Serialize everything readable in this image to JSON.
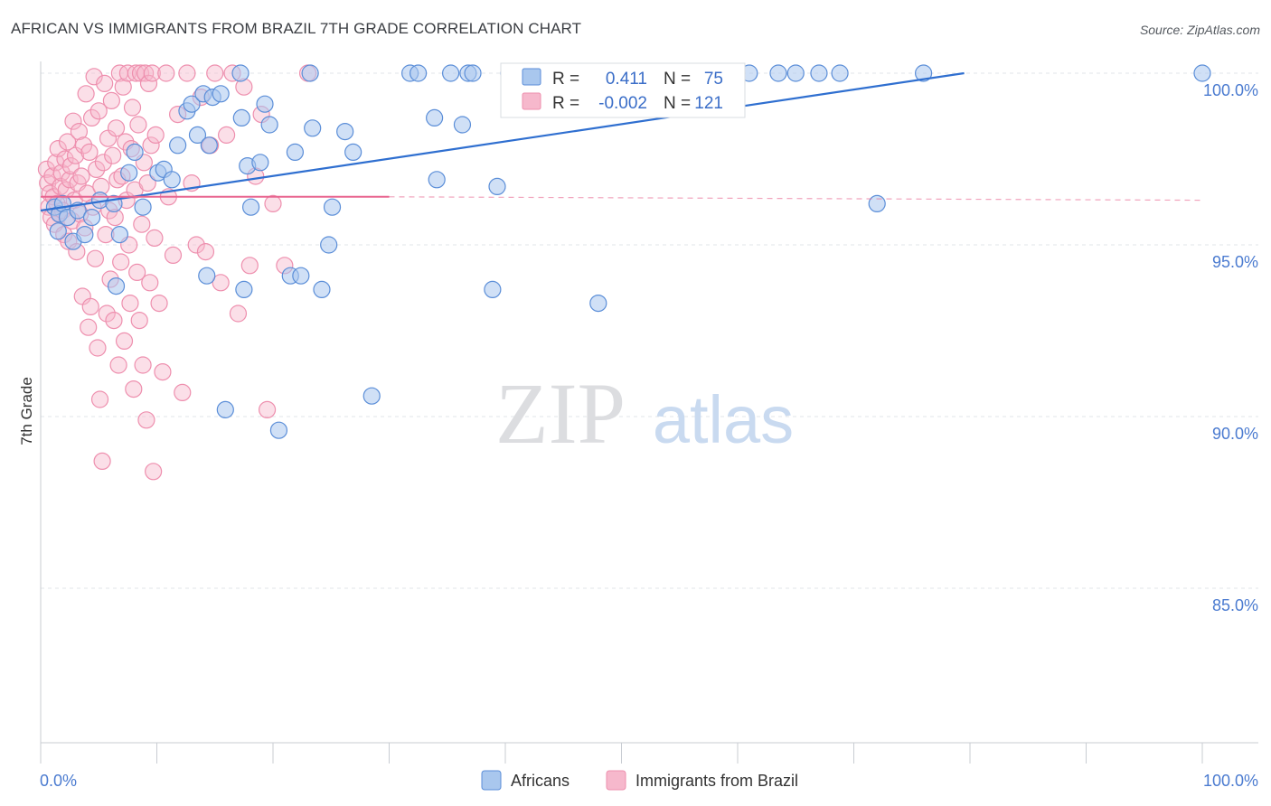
{
  "title": "AFRICAN VS IMMIGRANTS FROM BRAZIL 7TH GRADE CORRELATION CHART",
  "source": "Source: ZipAtlas.com",
  "watermark": {
    "zip": "ZIP",
    "atlas": "atlas"
  },
  "colors": {
    "blue_fill": "#a9c7ee",
    "blue_stroke": "#5b8ed8",
    "blue_line": "#2f6fd0",
    "pink_fill": "#f6b8cc",
    "pink_stroke": "#ee8fae",
    "pink_line": "#e8658f",
    "tick_text": "#4b7bd0",
    "grid": "#e2e4e8"
  },
  "stats": [
    {
      "r_label": "R =",
      "r_value": "0.411",
      "n_label": "N =",
      "n_value": "75"
    },
    {
      "r_label": "R =",
      "r_value": "-0.002",
      "n_label": "N =",
      "n_value": "121"
    }
  ],
  "legend": [
    "Africans",
    "Immigrants from Brazil"
  ],
  "chart_data": {
    "type": "scatter",
    "title": "AFRICAN VS IMMIGRANTS FROM BRAZIL 7TH GRADE CORRELATION CHART",
    "xlabel": "",
    "ylabel": "7th Grade",
    "xlim": [
      0,
      100
    ],
    "ylim": [
      80.5,
      100.5
    ],
    "x_tick_labels": [
      "0.0%",
      "100.0%"
    ],
    "y_ticks": [
      85,
      90,
      95,
      100
    ],
    "y_tick_labels": [
      "85.0%",
      "90.0%",
      "95.0%",
      "100.0%"
    ],
    "grid": true,
    "legend_position": "bottom",
    "series": [
      {
        "name": "Africans",
        "trend": {
          "x": [
            0,
            79.5
          ],
          "y": [
            96.0,
            100.0
          ],
          "style": "solid"
        },
        "points": [
          [
            1.2,
            96.1
          ],
          [
            1.6,
            95.9
          ],
          [
            1.9,
            96.2
          ],
          [
            2.3,
            95.8
          ],
          [
            1.5,
            95.4
          ],
          [
            2.8,
            95.1
          ],
          [
            3.2,
            96.0
          ],
          [
            3.8,
            95.3
          ],
          [
            4.4,
            95.8
          ],
          [
            5.1,
            96.3
          ],
          [
            6.3,
            96.2
          ],
          [
            6.5,
            93.8
          ],
          [
            6.8,
            95.3
          ],
          [
            7.6,
            97.1
          ],
          [
            8.1,
            97.7
          ],
          [
            8.8,
            96.1
          ],
          [
            10.1,
            97.1
          ],
          [
            10.6,
            97.2
          ],
          [
            11.3,
            96.9
          ],
          [
            11.8,
            97.9
          ],
          [
            12.6,
            98.9
          ],
          [
            13.0,
            99.1
          ],
          [
            13.5,
            98.2
          ],
          [
            14.0,
            99.4
          ],
          [
            14.3,
            94.1
          ],
          [
            14.5,
            97.9
          ],
          [
            14.8,
            99.3
          ],
          [
            15.5,
            99.4
          ],
          [
            15.9,
            90.2
          ],
          [
            17.2,
            100.0
          ],
          [
            17.3,
            98.7
          ],
          [
            17.5,
            93.7
          ],
          [
            17.8,
            97.3
          ],
          [
            18.1,
            96.1
          ],
          [
            18.9,
            97.4
          ],
          [
            19.3,
            99.1
          ],
          [
            19.7,
            98.5
          ],
          [
            20.5,
            89.6
          ],
          [
            21.5,
            94.1
          ],
          [
            21.9,
            97.7
          ],
          [
            22.4,
            94.1
          ],
          [
            23.2,
            100.0
          ],
          [
            23.4,
            98.4
          ],
          [
            24.2,
            93.7
          ],
          [
            24.8,
            95.0
          ],
          [
            25.1,
            96.1
          ],
          [
            26.2,
            98.3
          ],
          [
            26.9,
            97.7
          ],
          [
            28.5,
            90.6
          ],
          [
            31.8,
            100.0
          ],
          [
            32.5,
            100.0
          ],
          [
            33.9,
            98.7
          ],
          [
            34.1,
            96.9
          ],
          [
            35.3,
            100.0
          ],
          [
            36.3,
            98.5
          ],
          [
            36.8,
            100.0
          ],
          [
            37.2,
            100.0
          ],
          [
            38.9,
            93.7
          ],
          [
            39.3,
            96.7
          ],
          [
            40.3,
            100.0
          ],
          [
            45.0,
            100.0
          ],
          [
            45.5,
            100.0
          ],
          [
            47.0,
            99.0
          ],
          [
            48.0,
            93.3
          ],
          [
            55.5,
            100.0
          ],
          [
            57.0,
            100.0
          ],
          [
            59.5,
            100.0
          ],
          [
            61.0,
            100.0
          ],
          [
            63.5,
            100.0
          ],
          [
            65.0,
            100.0
          ],
          [
            67.0,
            100.0
          ],
          [
            68.8,
            100.0
          ],
          [
            72.0,
            96.2
          ],
          [
            76.0,
            100.0
          ],
          [
            100.0,
            100.0
          ]
        ]
      },
      {
        "name": "Immigrants from Brazil",
        "trend": {
          "x": [
            0,
            30,
            100
          ],
          "y": [
            96.4,
            96.4,
            96.3
          ],
          "style": "solid-then-dashed"
        },
        "points": [
          [
            0.5,
            97.2
          ],
          [
            0.6,
            96.8
          ],
          [
            0.7,
            96.1
          ],
          [
            0.8,
            96.5
          ],
          [
            0.9,
            95.8
          ],
          [
            1.0,
            97.0
          ],
          [
            1.1,
            96.4
          ],
          [
            1.2,
            95.6
          ],
          [
            1.3,
            97.4
          ],
          [
            1.4,
            96.2
          ],
          [
            1.5,
            97.8
          ],
          [
            1.6,
            95.9
          ],
          [
            1.7,
            96.7
          ],
          [
            1.8,
            97.1
          ],
          [
            1.9,
            96.0
          ],
          [
            2.0,
            95.3
          ],
          [
            2.1,
            97.5
          ],
          [
            2.2,
            96.6
          ],
          [
            2.3,
            98.0
          ],
          [
            2.4,
            95.1
          ],
          [
            2.5,
            96.9
          ],
          [
            2.6,
            97.3
          ],
          [
            2.7,
            95.7
          ],
          [
            2.8,
            98.6
          ],
          [
            2.9,
            96.3
          ],
          [
            3.0,
            97.6
          ],
          [
            3.1,
            94.8
          ],
          [
            3.2,
            96.8
          ],
          [
            3.3,
            98.3
          ],
          [
            3.4,
            95.9
          ],
          [
            3.5,
            97.0
          ],
          [
            3.6,
            93.5
          ],
          [
            3.7,
            97.9
          ],
          [
            3.8,
            95.5
          ],
          [
            3.9,
            99.4
          ],
          [
            4.0,
            96.5
          ],
          [
            4.1,
            92.6
          ],
          [
            4.2,
            97.7
          ],
          [
            4.3,
            93.2
          ],
          [
            4.4,
            98.7
          ],
          [
            4.5,
            96.1
          ],
          [
            4.6,
            99.9
          ],
          [
            4.7,
            94.6
          ],
          [
            4.8,
            97.2
          ],
          [
            4.9,
            92.0
          ],
          [
            5.0,
            98.9
          ],
          [
            5.1,
            90.5
          ],
          [
            5.2,
            96.7
          ],
          [
            5.3,
            88.7
          ],
          [
            5.4,
            97.4
          ],
          [
            5.5,
            99.7
          ],
          [
            5.6,
            95.3
          ],
          [
            5.7,
            93.0
          ],
          [
            5.8,
            98.1
          ],
          [
            5.9,
            96.0
          ],
          [
            6.0,
            94.0
          ],
          [
            6.1,
            99.2
          ],
          [
            6.2,
            97.6
          ],
          [
            6.3,
            92.8
          ],
          [
            6.4,
            95.8
          ],
          [
            6.5,
            98.4
          ],
          [
            6.6,
            96.9
          ],
          [
            6.7,
            91.5
          ],
          [
            6.8,
            100.0
          ],
          [
            6.9,
            94.5
          ],
          [
            7.0,
            97.0
          ],
          [
            7.1,
            99.6
          ],
          [
            7.2,
            92.2
          ],
          [
            7.3,
            98.0
          ],
          [
            7.4,
            96.3
          ],
          [
            7.5,
            100.0
          ],
          [
            7.6,
            95.0
          ],
          [
            7.7,
            93.3
          ],
          [
            7.8,
            97.8
          ],
          [
            7.9,
            99.0
          ],
          [
            8.0,
            90.8
          ],
          [
            8.1,
            96.6
          ],
          [
            8.2,
            100.0
          ],
          [
            8.3,
            94.2
          ],
          [
            8.4,
            98.5
          ],
          [
            8.5,
            92.8
          ],
          [
            8.6,
            100.0
          ],
          [
            8.7,
            95.6
          ],
          [
            8.8,
            91.5
          ],
          [
            8.9,
            97.4
          ],
          [
            9.0,
            100.0
          ],
          [
            9.1,
            89.9
          ],
          [
            9.2,
            96.8
          ],
          [
            9.3,
            99.7
          ],
          [
            9.4,
            93.9
          ],
          [
            9.5,
            97.9
          ],
          [
            9.6,
            100.0
          ],
          [
            9.7,
            88.4
          ],
          [
            9.8,
            95.2
          ],
          [
            9.9,
            98.2
          ],
          [
            10.2,
            93.3
          ],
          [
            10.5,
            91.3
          ],
          [
            10.8,
            100.0
          ],
          [
            11.0,
            96.4
          ],
          [
            11.4,
            94.7
          ],
          [
            11.8,
            98.8
          ],
          [
            12.2,
            90.7
          ],
          [
            12.6,
            100.0
          ],
          [
            13.0,
            96.8
          ],
          [
            13.4,
            95.0
          ],
          [
            13.8,
            99.3
          ],
          [
            14.2,
            94.8
          ],
          [
            14.6,
            97.9
          ],
          [
            15.0,
            100.0
          ],
          [
            15.5,
            93.9
          ],
          [
            16.0,
            98.2
          ],
          [
            16.5,
            100.0
          ],
          [
            17.0,
            93.0
          ],
          [
            17.5,
            99.6
          ],
          [
            18.0,
            94.4
          ],
          [
            18.5,
            97.0
          ],
          [
            19.0,
            98.8
          ],
          [
            19.5,
            90.2
          ],
          [
            20.0,
            96.2
          ],
          [
            21.0,
            94.4
          ],
          [
            23.0,
            100.0
          ]
        ]
      }
    ]
  }
}
